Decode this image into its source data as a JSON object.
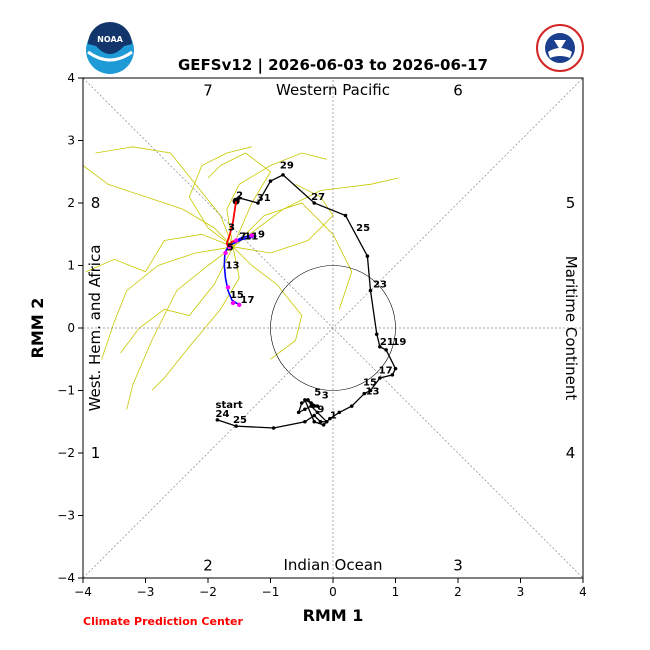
{
  "title": "GEFSv12 | 2026-06-03 to 2026-06-17",
  "footer": "Climate Prediction Center",
  "logos": {
    "left": {
      "name": "noaa-logo",
      "text": "NOAA"
    },
    "right": {
      "name": "nws-logo",
      "text": "NATIONAL WEATHER SERVICE"
    }
  },
  "colors": {
    "observed": "#000000",
    "forecast_first": "#ff0000",
    "forecast_second": "#0000ff",
    "forecast_marker": "#ff00ff",
    "ensemble": "#c8c800",
    "footer": "#ff0000"
  },
  "chart_data": {
    "type": "line",
    "title": "GEFSv12 | 2026-06-03 to 2026-06-17",
    "xlabel": "RMM 1",
    "ylabel": "RMM 2",
    "xlim": [
      -4,
      4
    ],
    "ylim": [
      -4,
      4
    ],
    "xticks": [
      "−4",
      "−3",
      "−2",
      "−1",
      "0",
      "1",
      "2",
      "3",
      "4"
    ],
    "yticks": [
      "−4",
      "−3",
      "−2",
      "−1",
      "0",
      "1",
      "2",
      "3",
      "4"
    ],
    "grid": false,
    "phase_numbers": [
      {
        "label": "1",
        "x": -3.8,
        "y": -2.0
      },
      {
        "label": "2",
        "x": -2.0,
        "y": -3.8
      },
      {
        "label": "3",
        "x": 2.0,
        "y": -3.8
      },
      {
        "label": "4",
        "x": 3.8,
        "y": -2.0
      },
      {
        "label": "5",
        "x": 3.8,
        "y": 2.0
      },
      {
        "label": "6",
        "x": 2.0,
        "y": 3.8
      },
      {
        "label": "7",
        "x": -2.0,
        "y": 3.8
      },
      {
        "label": "8",
        "x": -3.8,
        "y": 2.0
      }
    ],
    "region_labels": {
      "top": "Western Pacific",
      "bottom": "Indian Ocean",
      "left": "West. Hem. and Africa",
      "right": "Maritime Continent"
    },
    "observed": {
      "x": [
        -1.85,
        -1.55,
        -0.95,
        -0.45,
        -0.3,
        -0.2,
        -0.1,
        -0.25,
        -0.35,
        -0.45,
        -0.55,
        -0.5,
        -0.4,
        -0.3,
        -0.25,
        -0.35,
        -0.45,
        -0.3,
        -0.15,
        -0.05,
        0.1,
        0.3,
        0.5,
        0.6,
        0.75,
        0.95,
        1.0,
        0.85,
        0.75,
        0.7,
        0.6,
        0.55,
        0.2,
        -0.3,
        -0.8,
        -1.0,
        -1.2,
        -1.5,
        -1.55
      ],
      "y": [
        -1.47,
        -1.57,
        -1.6,
        -1.5,
        -1.4,
        -1.5,
        -1.5,
        -1.35,
        -1.25,
        -1.3,
        -1.35,
        -1.2,
        -1.15,
        -1.25,
        -1.25,
        -1.2,
        -1.15,
        -1.5,
        -1.55,
        -1.45,
        -1.35,
        -1.25,
        -1.05,
        -1.0,
        -0.8,
        -0.75,
        -0.65,
        -0.35,
        -0.3,
        -0.1,
        0.6,
        1.15,
        1.8,
        2.0,
        2.45,
        2.35,
        2.0,
        2.08,
        2.03
      ],
      "labels": [
        {
          "text": "start",
          "x": -1.88,
          "y": -1.28
        },
        {
          "text": "24",
          "x": -1.88,
          "y": -1.42
        },
        {
          "text": "25",
          "x": -1.6,
          "y": -1.52
        },
        {
          "text": "5",
          "x": -0.3,
          "y": -1.08
        },
        {
          "text": "3",
          "x": -0.18,
          "y": -1.13
        },
        {
          "text": "9",
          "x": -0.25,
          "y": -1.35
        },
        {
          "text": "1",
          "x": -0.05,
          "y": -1.45
        },
        {
          "text": "15",
          "x": 0.48,
          "y": -0.92
        },
        {
          "text": "13",
          "x": 0.52,
          "y": -1.06
        },
        {
          "text": "17",
          "x": 0.73,
          "y": -0.73
        },
        {
          "text": "21",
          "x": 0.75,
          "y": -0.27
        },
        {
          "text": "19",
          "x": 0.95,
          "y": -0.27
        },
        {
          "text": "23",
          "x": 0.64,
          "y": 0.65
        },
        {
          "text": "25",
          "x": 0.37,
          "y": 1.55
        },
        {
          "text": "27",
          "x": -0.35,
          "y": 2.05
        },
        {
          "text": "29",
          "x": -0.85,
          "y": 2.55
        },
        {
          "text": "31",
          "x": -1.22,
          "y": 2.03
        },
        {
          "text": "2",
          "x": -1.55,
          "y": 2.07
        }
      ]
    },
    "forecast": {
      "red": {
        "x": [
          -1.55,
          -1.6,
          -1.65,
          -1.7,
          -1.68,
          -1.62,
          -1.55
        ],
        "y": [
          2.03,
          1.7,
          1.5,
          1.35,
          1.3,
          1.38,
          1.4
        ]
      },
      "blue": {
        "x": [
          -1.55,
          -1.45,
          -1.35,
          -1.28,
          -1.25,
          -1.3,
          -1.45,
          -1.6,
          -1.68,
          -1.73,
          -1.74,
          -1.72,
          -1.68,
          -1.62,
          -1.55,
          -1.5
        ],
        "y": [
          1.4,
          1.45,
          1.47,
          1.48,
          1.47,
          1.45,
          1.42,
          1.35,
          1.3,
          1.2,
          1.0,
          0.8,
          0.6,
          0.45,
          0.4,
          0.38
        ]
      },
      "magenta_points": {
        "x": [
          -1.65,
          -1.55,
          -1.3,
          -1.72,
          -1.68,
          -1.6,
          -1.5
        ],
        "y": [
          1.3,
          1.4,
          1.48,
          1.2,
          0.65,
          0.4,
          0.37
        ]
      },
      "labels": [
        {
          "text": "3",
          "x": -1.68,
          "y": 1.56
        },
        {
          "text": "5",
          "x": -1.7,
          "y": 1.24
        },
        {
          "text": "7",
          "x": -1.5,
          "y": 1.42
        },
        {
          "text": "11",
          "x": -1.42,
          "y": 1.42
        },
        {
          "text": "9",
          "x": -1.2,
          "y": 1.45
        },
        {
          "text": "13",
          "x": -1.72,
          "y": 0.95
        },
        {
          "text": "15",
          "x": -1.65,
          "y": 0.48
        },
        {
          "text": "17",
          "x": -1.48,
          "y": 0.4
        }
      ]
    },
    "ensemble_members": [
      [
        [
          -1.6,
          1.3
        ],
        [
          -2.0,
          1.0
        ],
        [
          -2.5,
          0.6
        ],
        [
          -2.9,
          -0.2
        ],
        [
          -3.2,
          -0.9
        ],
        [
          -3.3,
          -1.3
        ]
      ],
      [
        [
          -1.6,
          1.3
        ],
        [
          -1.9,
          1.6
        ],
        [
          -2.4,
          1.9
        ],
        [
          -3.0,
          2.1
        ],
        [
          -3.6,
          2.3
        ],
        [
          -4.0,
          2.6
        ]
      ],
      [
        [
          -1.6,
          1.3
        ],
        [
          -1.2,
          1.6
        ],
        [
          -0.8,
          1.9
        ],
        [
          -0.2,
          2.2
        ],
        [
          0.6,
          2.3
        ],
        [
          1.05,
          2.4
        ]
      ],
      [
        [
          -1.6,
          1.3
        ],
        [
          -1.3,
          1.0
        ],
        [
          -0.9,
          0.7
        ],
        [
          -0.5,
          0.2
        ],
        [
          -0.6,
          -0.2
        ],
        [
          -1.0,
          -0.5
        ]
      ],
      [
        [
          -1.6,
          1.3
        ],
        [
          -2.2,
          1.2
        ],
        [
          -2.8,
          1.0
        ],
        [
          -3.3,
          0.6
        ],
        [
          -3.5,
          0.1
        ],
        [
          -3.7,
          -0.5
        ]
      ],
      [
        [
          -1.6,
          1.3
        ],
        [
          -1.8,
          1.8
        ],
        [
          -2.2,
          2.3
        ],
        [
          -2.6,
          2.8
        ],
        [
          -3.2,
          2.9
        ],
        [
          -3.8,
          2.8
        ]
      ],
      [
        [
          -1.6,
          1.3
        ],
        [
          -1.1,
          1.8
        ],
        [
          -0.5,
          2.0
        ],
        [
          0.0,
          1.5
        ],
        [
          0.3,
          0.9
        ],
        [
          0.1,
          0.3
        ]
      ],
      [
        [
          -1.6,
          1.3
        ],
        [
          -1.5,
          0.8
        ],
        [
          -1.8,
          0.3
        ],
        [
          -2.3,
          -0.3
        ],
        [
          -2.7,
          -0.8
        ],
        [
          -2.9,
          -1.0
        ]
      ],
      [
        [
          -1.6,
          1.3
        ],
        [
          -2.1,
          1.5
        ],
        [
          -2.7,
          1.4
        ],
        [
          -3.0,
          0.9
        ],
        [
          -3.5,
          1.1
        ],
        [
          -3.95,
          0.9
        ]
      ],
      [
        [
          -1.6,
          1.3
        ],
        [
          -1.3,
          2.0
        ],
        [
          -1.0,
          2.5
        ],
        [
          -1.4,
          2.8
        ],
        [
          -1.8,
          2.6
        ],
        [
          -2.0,
          2.4
        ]
      ],
      [
        [
          -1.6,
          1.3
        ],
        [
          -1.0,
          1.2
        ],
        [
          -0.4,
          1.4
        ],
        [
          0.0,
          1.8
        ],
        [
          -0.2,
          2.1
        ],
        [
          -0.6,
          2.3
        ]
      ],
      [
        [
          -1.6,
          1.3
        ],
        [
          -1.9,
          0.7
        ],
        [
          -2.3,
          0.2
        ],
        [
          -2.7,
          0.3
        ],
        [
          -3.1,
          0.0
        ],
        [
          -3.4,
          -0.4
        ]
      ],
      [
        [
          -1.6,
          1.3
        ],
        [
          -1.7,
          1.9
        ],
        [
          -1.5,
          2.3
        ],
        [
          -1.0,
          2.6
        ],
        [
          -0.5,
          2.8
        ],
        [
          -0.1,
          2.7
        ]
      ],
      [
        [
          -1.6,
          1.3
        ],
        [
          -2.0,
          1.6
        ],
        [
          -2.3,
          2.1
        ],
        [
          -2.1,
          2.6
        ],
        [
          -1.7,
          2.8
        ],
        [
          -1.3,
          2.9
        ]
      ]
    ]
  }
}
